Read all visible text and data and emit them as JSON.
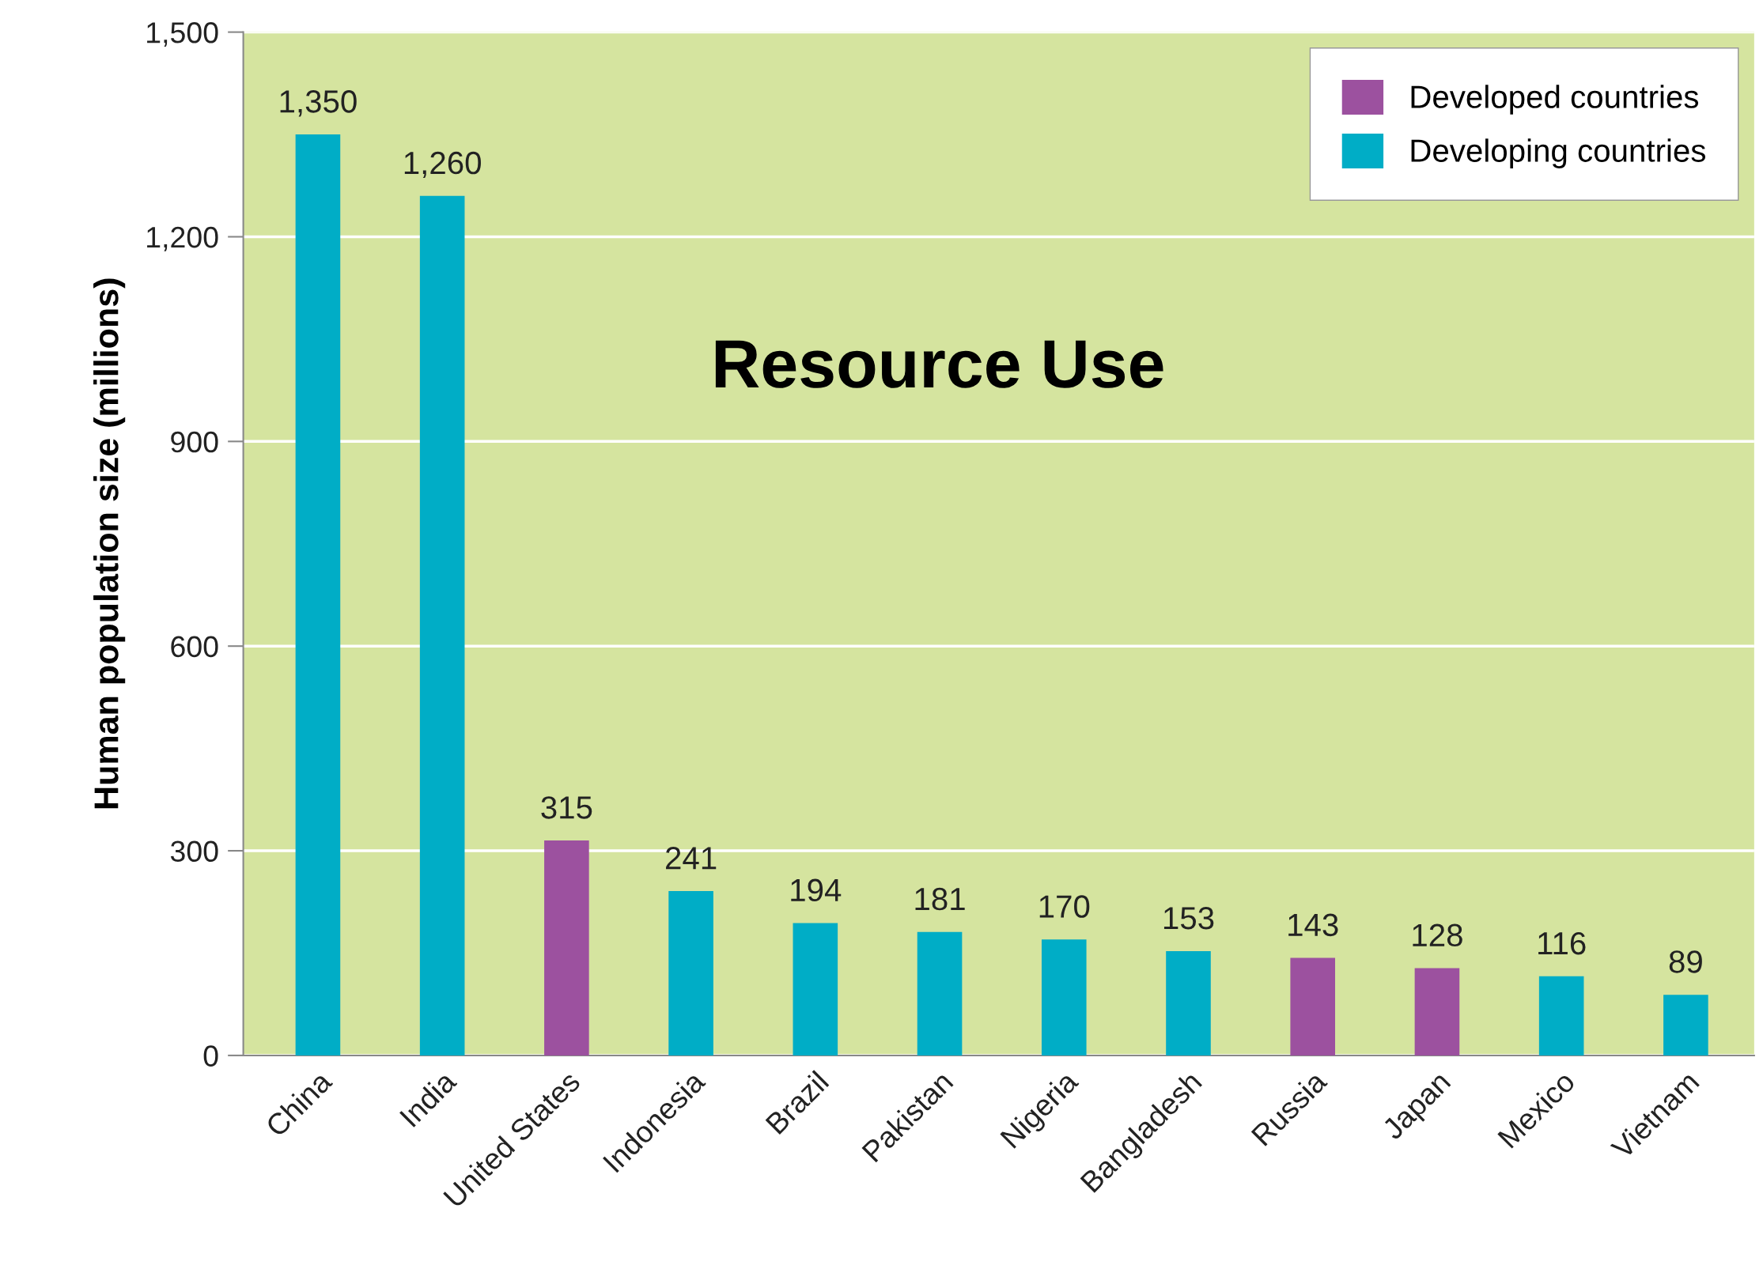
{
  "chart_data": {
    "type": "bar",
    "title": "Resource Use",
    "ylabel": "Human population size (millions)",
    "categories": [
      "China",
      "India",
      "United States",
      "Indonesia",
      "Brazil",
      "Pakistan",
      "Nigeria",
      "Bangladesh",
      "Russia",
      "Japan",
      "Mexico",
      "Vietnam"
    ],
    "series": [
      {
        "name": "Developed countries",
        "color": "#9c519f",
        "values": [
          null,
          null,
          315,
          null,
          null,
          null,
          null,
          null,
          143,
          128,
          null,
          null
        ],
        "value_labels": [
          null,
          null,
          "315",
          null,
          null,
          null,
          null,
          null,
          "143",
          "128",
          null,
          null
        ]
      },
      {
        "name": "Developing countries",
        "color": "#00adc6",
        "values": [
          1350,
          1260,
          null,
          241,
          194,
          181,
          170,
          153,
          null,
          null,
          116,
          89
        ],
        "value_labels": [
          "1,350",
          "1,260",
          null,
          "241",
          "194",
          "181",
          "170",
          "153",
          null,
          null,
          "116",
          "89"
        ]
      }
    ],
    "ylim": [
      0,
      1500
    ],
    "yticks": [
      0,
      300,
      600,
      900,
      {
        "value": 1200,
        "label": "1,200"
      },
      {
        "value": 1500,
        "label": "1,500"
      }
    ],
    "grid": "y",
    "legend": "top right"
  }
}
